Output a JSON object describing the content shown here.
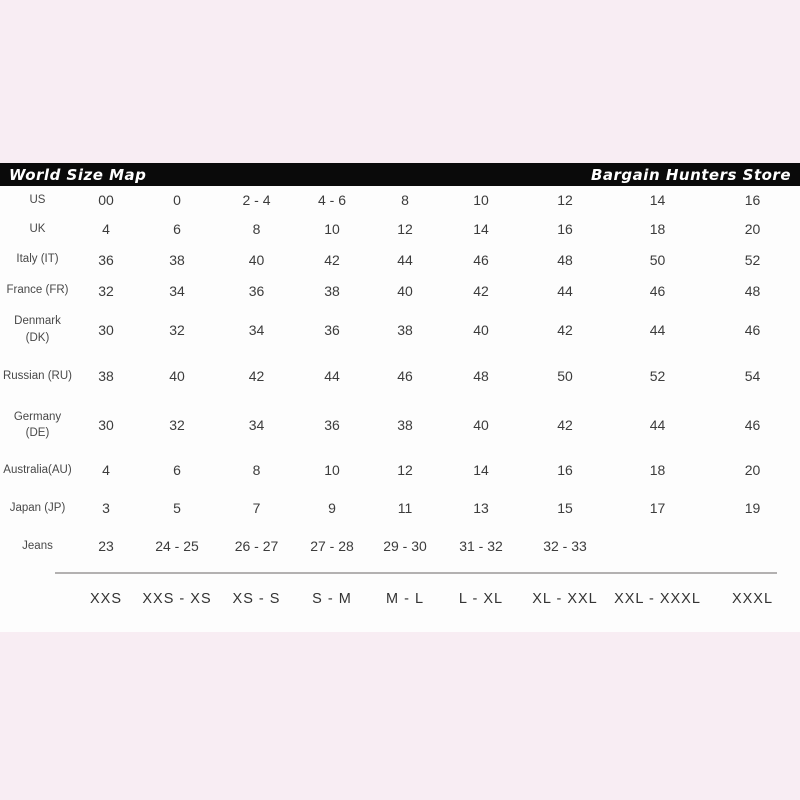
{
  "page": {
    "background_color": "#f8edf3",
    "sheet_color": "#fdfdfd",
    "divider_color": "#b3b1b1"
  },
  "header": {
    "left_title": "World Size Map",
    "right_title": "Bargain Hunters Store",
    "bar_color": "#0a0a0a",
    "text_color": "#ffffff"
  },
  "table": {
    "rows": [
      {
        "label": "US",
        "values": [
          "00",
          "0",
          "2 - 4",
          "4 - 6",
          "8",
          "10",
          "12",
          "14",
          "16"
        ]
      },
      {
        "label": "UK",
        "values": [
          "4",
          "6",
          "8",
          "10",
          "12",
          "14",
          "16",
          "18",
          "20"
        ]
      },
      {
        "label": "Italy (IT)",
        "values": [
          "36",
          "38",
          "40",
          "42",
          "44",
          "46",
          "48",
          "50",
          "52"
        ]
      },
      {
        "label": "France (FR)",
        "values": [
          "32",
          "34",
          "36",
          "38",
          "40",
          "42",
          "44",
          "46",
          "48"
        ]
      },
      {
        "label": "Denmark\n(DK)",
        "values": [
          "30",
          "32",
          "34",
          "36",
          "38",
          "40",
          "42",
          "44",
          "46"
        ]
      },
      {
        "label": "Russian (RU)",
        "values": [
          "38",
          "40",
          "42",
          "44",
          "46",
          "48",
          "50",
          "52",
          "54"
        ]
      },
      {
        "label": "Germany\n(DE)",
        "values": [
          "30",
          "32",
          "34",
          "36",
          "38",
          "40",
          "42",
          "44",
          "46"
        ]
      },
      {
        "label": "Australia(AU)",
        "values": [
          "4",
          "6",
          "8",
          "10",
          "12",
          "14",
          "16",
          "18",
          "20"
        ]
      },
      {
        "label": "Japan (JP)",
        "values": [
          "3",
          "5",
          "7",
          "9",
          "11",
          "13",
          "15",
          "17",
          "19"
        ]
      },
      {
        "label": "Jeans",
        "values": [
          "23",
          "24 - 25",
          "26 - 27",
          "27 - 28",
          "29 - 30",
          "31 - 32",
          "32 - 33",
          "",
          ""
        ]
      }
    ],
    "size_labels": [
      "XXS",
      "XXS - XS",
      "XS - S",
      "S - M",
      "M - L",
      "L - XL",
      "XL - XXL",
      "XXL - XXXL",
      "XXXL"
    ]
  }
}
